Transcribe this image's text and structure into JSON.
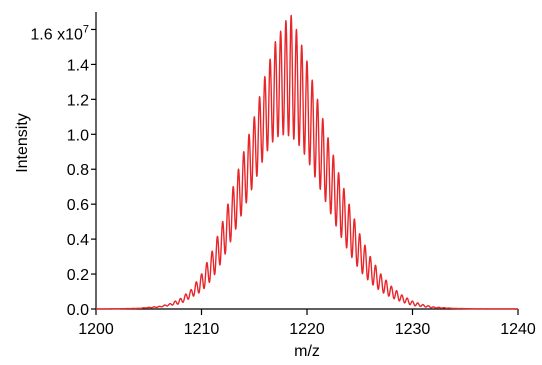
{
  "chart_data": {
    "type": "line",
    "title": "",
    "xlabel": "m/z",
    "ylabel": "Intensity",
    "xlim": [
      1200,
      1240
    ],
    "ylim": [
      0,
      17000000
    ],
    "x_ticks": [
      1200,
      1210,
      1220,
      1230,
      1240
    ],
    "y_ticks": [
      0,
      0.2,
      0.4,
      0.6,
      0.8,
      1.0,
      1.2,
      1.4,
      1.6
    ],
    "y_tick_labels": [
      "0.0",
      "0.2",
      "0.4",
      "0.6",
      "0.8",
      "1.0",
      "1.2",
      "1.4",
      "1.6 x10"
    ],
    "y_multiplier_exponent": "7",
    "grid": false,
    "series": [
      {
        "color": "#e8262a",
        "peak_spacing": 0.5,
        "envelope": [
          [
            1200.0,
            0.0
          ],
          [
            1202.0,
            0.001
          ],
          [
            1204.0,
            0.004
          ],
          [
            1206.0,
            0.015
          ],
          [
            1207.0,
            0.03
          ],
          [
            1208.0,
            0.06
          ],
          [
            1209.0,
            0.11
          ],
          [
            1210.0,
            0.2
          ],
          [
            1211.0,
            0.33
          ],
          [
            1212.0,
            0.5
          ],
          [
            1213.0,
            0.7
          ],
          [
            1214.0,
            0.9
          ],
          [
            1215.0,
            1.1
          ],
          [
            1216.0,
            1.33
          ],
          [
            1217.0,
            1.53
          ],
          [
            1218.0,
            1.65
          ],
          [
            1218.5,
            1.68
          ],
          [
            1219.0,
            1.6
          ],
          [
            1220.0,
            1.42
          ],
          [
            1221.0,
            1.2
          ],
          [
            1222.0,
            0.98
          ],
          [
            1223.0,
            0.78
          ],
          [
            1224.0,
            0.6
          ],
          [
            1225.0,
            0.43
          ],
          [
            1226.0,
            0.3
          ],
          [
            1227.0,
            0.2
          ],
          [
            1228.0,
            0.13
          ],
          [
            1229.0,
            0.08
          ],
          [
            1230.0,
            0.045
          ],
          [
            1231.0,
            0.025
          ],
          [
            1232.0,
            0.012
          ],
          [
            1234.0,
            0.003
          ],
          [
            1236.0,
            0.001
          ],
          [
            1240.0,
            0.0
          ]
        ],
        "valleys": [
          [
            1200.0,
            0.0
          ],
          [
            1204.0,
            0.003
          ],
          [
            1206.0,
            0.01
          ],
          [
            1208.0,
            0.03
          ],
          [
            1210.0,
            0.1
          ],
          [
            1211.0,
            0.17
          ],
          [
            1212.0,
            0.28
          ],
          [
            1213.0,
            0.42
          ],
          [
            1214.0,
            0.57
          ],
          [
            1215.0,
            0.72
          ],
          [
            1216.0,
            0.88
          ],
          [
            1217.0,
            0.98
          ],
          [
            1218.0,
            1.0
          ],
          [
            1219.0,
            0.96
          ],
          [
            1220.0,
            0.86
          ],
          [
            1221.0,
            0.72
          ],
          [
            1222.0,
            0.58
          ],
          [
            1223.0,
            0.44
          ],
          [
            1224.0,
            0.32
          ],
          [
            1225.0,
            0.22
          ],
          [
            1226.0,
            0.15
          ],
          [
            1227.0,
            0.1
          ],
          [
            1228.0,
            0.065
          ],
          [
            1229.0,
            0.04
          ],
          [
            1230.0,
            0.02
          ],
          [
            1232.0,
            0.006
          ],
          [
            1236.0,
            0.0005
          ],
          [
            1240.0,
            0.0
          ]
        ]
      }
    ]
  }
}
